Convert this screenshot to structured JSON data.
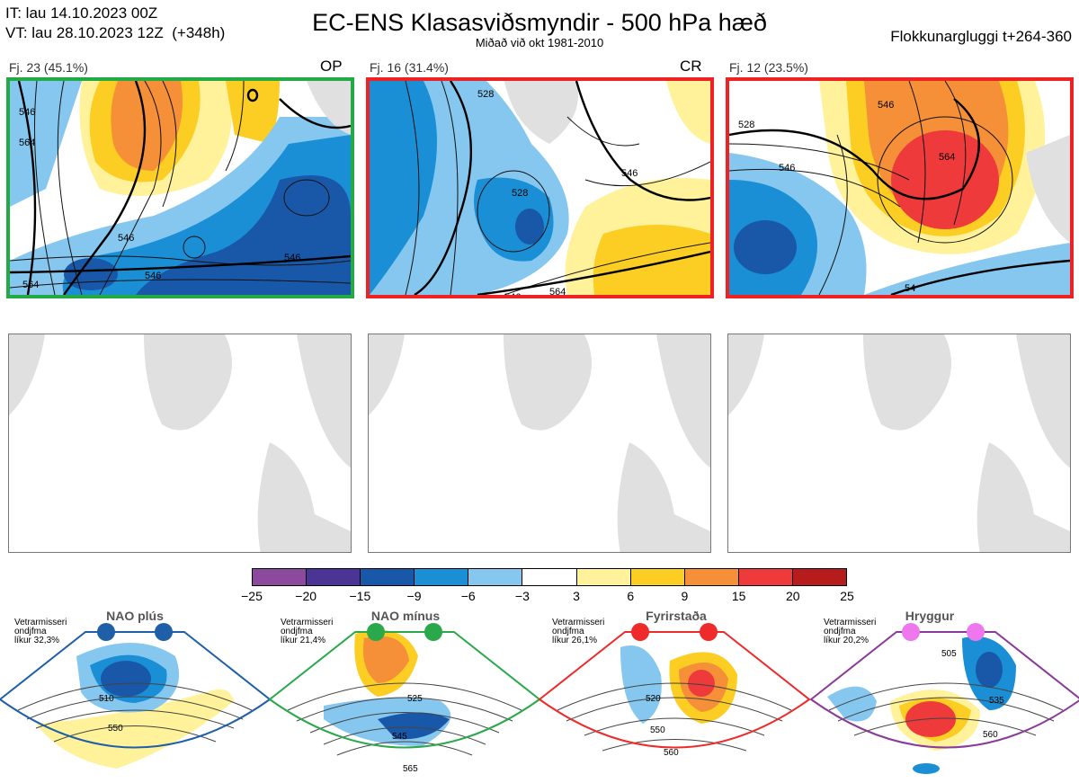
{
  "header": {
    "it": "IT: lau 14.10.2023 00Z",
    "vt": "VT: lau 28.10.2023 12Z  (+348h)",
    "title": "EC-ENS Klasasviðsmyndir - 500 hPa hæð",
    "subtitle": "Miðað við okt 1981-2010",
    "window": "Flokkunargluggi t+264-360"
  },
  "clusters": [
    {
      "label": "Fj. 23 (45.1%)",
      "tag": "OP",
      "border": "#22aa44",
      "contours": [
        "546",
        "564",
        "546",
        "546",
        "564",
        "546"
      ]
    },
    {
      "label": "Fj. 16 (31.4%)",
      "tag": "CR",
      "border": "#ee2222",
      "contours": [
        "528",
        "546",
        "528",
        "564",
        "546"
      ]
    },
    {
      "label": "Fj. 12 (23.5%)",
      "tag": "",
      "border": "#ee2222",
      "contours": [
        "528",
        "546",
        "546",
        "564",
        "54"
      ]
    }
  ],
  "colorbar": {
    "colors": [
      "#8b4a9c",
      "#4a3594",
      "#1958a8",
      "#1a8fd6",
      "#86c7ef",
      "#ffffff",
      "#fff29a",
      "#fccd22",
      "#f58f38",
      "#ee3a3a",
      "#b71c1c"
    ],
    "ticks": [
      "−25",
      "−20",
      "−15",
      "−9",
      "−6",
      "−3",
      "3",
      "6",
      "9",
      "15",
      "20",
      "25"
    ]
  },
  "regimes": [
    {
      "name": "NAO plús",
      "stat": "Vetrarmisseri\nondjfma\nlíkur 32,3%",
      "color": "#1f5fa8",
      "labels": [
        "510",
        "550"
      ]
    },
    {
      "name": "NAO mínus",
      "stat": "Vetrarmisseri\nondjfma\nlíkur 21,4%",
      "color": "#2aa84a",
      "labels": [
        "525",
        "545",
        "565"
      ]
    },
    {
      "name": "Fyrirstaða",
      "stat": "Vetrarmisseri\nondjfma\nlíkur 26,1%",
      "color": "#ee2a2a",
      "labels": [
        "520",
        "550",
        "560"
      ]
    },
    {
      "name": "Hryggur",
      "stat": "Vetrarmisseri\nondjfma\nlíkur 20,2%",
      "color": "#8a3a98",
      "dotColor": "#ee77ee",
      "labels": [
        "505",
        "535",
        "560"
      ]
    }
  ]
}
